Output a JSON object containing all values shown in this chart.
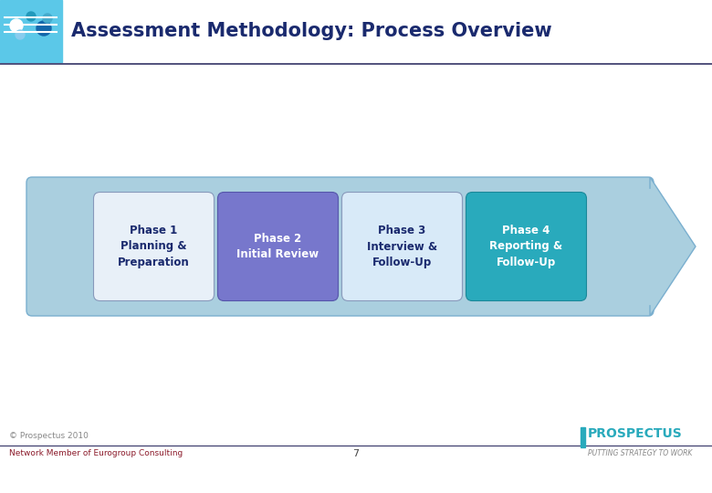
{
  "title": "Assessment Methodology: Process Overview",
  "title_color": "#1a2a6e",
  "title_fontsize": 15,
  "bg_color": "#ffffff",
  "arrow_bg_color": "#aacfdf",
  "arrow_border_color": "#7aafcf",
  "phases": [
    {
      "label": "Phase 1\nPlanning &\nPreparation",
      "box_color": "#e8f0f8",
      "text_color": "#1a2a6e",
      "border_color": "#8899bb"
    },
    {
      "label": "Phase 2\nInitial Review",
      "box_color": "#7777cc",
      "text_color": "#ffffff",
      "border_color": "#5555aa"
    },
    {
      "label": "Phase 3\nInterview &\nFollow-Up",
      "box_color": "#d8eaf8",
      "text_color": "#1a2a6e",
      "border_color": "#8899bb"
    },
    {
      "label": "Phase 4\nReporting &\nFollow-Up",
      "box_color": "#29aabc",
      "text_color": "#ffffff",
      "border_color": "#1a8899"
    }
  ],
  "footer_copyright": "© Prospectus 2010",
  "footer_network": "Network Member of Eurogroup Consulting",
  "footer_page": "7",
  "footer_prospectus": "PROSPECTUS",
  "footer_tagline": "PUTTING STRATEGY TO WORK",
  "footer_copyright_color": "#888888",
  "footer_network_color": "#8b1a2a",
  "footer_prospectus_color": "#29aabc",
  "footer_tagline_color": "#888888",
  "header_img_color": "#5bc8e8",
  "header_line_color": "#333366",
  "footer_line_color": "#333366"
}
